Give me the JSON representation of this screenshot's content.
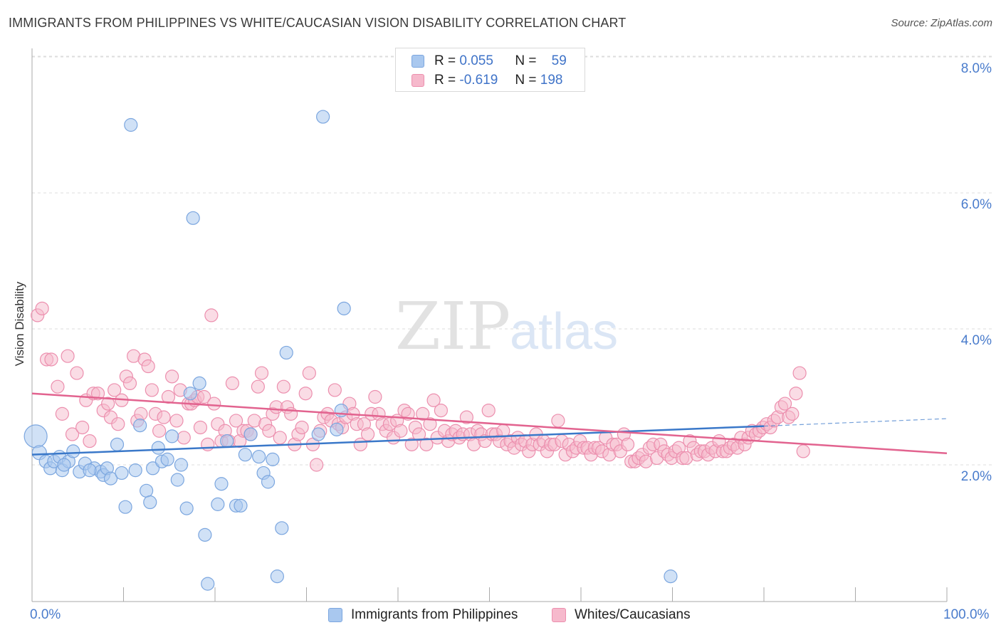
{
  "title": "IMMIGRANTS FROM PHILIPPINES VS WHITE/CAUCASIAN VISION DISABILITY CORRELATION CHART",
  "source": "Source: ZipAtlas.com",
  "watermark": {
    "zip": "ZIP",
    "atlas": "atlas"
  },
  "legend_top": {
    "rows": [
      {
        "r_label": "R =",
        "r_value": "0.055",
        "n_label": "N =",
        "n_value": "59"
      },
      {
        "r_label": "R =",
        "r_value": "-0.619",
        "n_label": "N =",
        "n_value": "198"
      }
    ]
  },
  "legend_bottom": {
    "items": [
      {
        "label": "Immigrants from Philippines"
      },
      {
        "label": "Whites/Caucasians"
      }
    ]
  },
  "colors": {
    "blue_fill": "#a9c8ef",
    "blue_stroke": "#7ba6df",
    "blue_line": "#3a78c9",
    "pink_fill": "#f6b9cc",
    "pink_stroke": "#ec8fae",
    "pink_line": "#e2638f",
    "tick_text": "#4a7ccc",
    "grid": "#dcdcdc"
  },
  "chart_data": {
    "type": "scatter",
    "ylabel": "Vision Disability",
    "x_tick_labels": [
      "0.0%",
      "100.0%"
    ],
    "y_tick_labels": [
      "2.0%",
      "4.0%",
      "6.0%",
      "8.0%"
    ],
    "y_ticks": [
      2.0,
      4.0,
      6.0,
      8.0
    ],
    "xlim": [
      0,
      100
    ],
    "ylim": [
      0.0,
      8.2
    ],
    "grid": true,
    "series": [
      {
        "name": "Immigrants from Philippines",
        "color": "blue",
        "trend": {
          "x0": 0,
          "y0": 2.15,
          "x1": 80,
          "y1": 2.57,
          "dashed_to_x": 100,
          "dashed_to_y": 2.68
        },
        "points": [
          [
            0.4,
            2.42,
            16
          ],
          [
            0.8,
            2.18,
            10
          ],
          [
            1.5,
            2.05,
            9
          ],
          [
            2,
            1.95,
            9
          ],
          [
            2.4,
            2.05,
            9
          ],
          [
            3,
            2.12,
            9
          ],
          [
            3.3,
            1.92,
            9
          ],
          [
            4,
            2.05,
            9
          ],
          [
            4.5,
            2.2,
            9
          ],
          [
            5.2,
            1.9,
            9
          ],
          [
            5.8,
            2.02,
            9
          ],
          [
            6.8,
            1.95,
            9
          ],
          [
            7.5,
            1.9,
            9
          ],
          [
            7.8,
            1.85,
            9
          ],
          [
            8.2,
            1.95,
            9
          ],
          [
            8.6,
            1.8,
            9
          ],
          [
            9.3,
            2.3,
            9
          ],
          [
            9.8,
            1.88,
            9
          ],
          [
            10.2,
            1.38,
            9
          ],
          [
            10.8,
            7.0,
            9
          ],
          [
            11.3,
            1.92,
            9
          ],
          [
            11.8,
            2.58,
            9
          ],
          [
            12.5,
            1.62,
            9
          ],
          [
            12.9,
            1.45,
            9
          ],
          [
            13.2,
            1.95,
            9
          ],
          [
            13.8,
            2.25,
            9
          ],
          [
            14.2,
            2.05,
            9
          ],
          [
            14.8,
            2.08,
            9
          ],
          [
            15.3,
            2.42,
            9
          ],
          [
            15.9,
            1.78,
            9
          ],
          [
            16.3,
            2.0,
            9
          ],
          [
            16.9,
            1.36,
            9
          ],
          [
            17.3,
            3.05,
            9
          ],
          [
            17.6,
            5.63,
            9
          ],
          [
            18.3,
            3.2,
            9
          ],
          [
            18.9,
            0.97,
            9
          ],
          [
            19.2,
            0.25,
            9
          ],
          [
            20.3,
            1.42,
            9
          ],
          [
            20.7,
            1.72,
            9
          ],
          [
            21.3,
            2.35,
            9
          ],
          [
            22.3,
            1.4,
            9
          ],
          [
            22.8,
            1.4,
            9
          ],
          [
            23.3,
            2.15,
            9
          ],
          [
            23.9,
            2.45,
            9
          ],
          [
            24.8,
            2.12,
            9
          ],
          [
            25.3,
            1.88,
            9
          ],
          [
            25.8,
            1.75,
            9
          ],
          [
            26.3,
            2.08,
            9
          ],
          [
            26.8,
            0.36,
            9
          ],
          [
            27.3,
            1.07,
            9
          ],
          [
            27.8,
            3.65,
            9
          ],
          [
            31.3,
            2.45,
            9
          ],
          [
            31.8,
            7.12,
            9
          ],
          [
            33.3,
            2.52,
            9
          ],
          [
            33.8,
            2.8,
            9
          ],
          [
            34.1,
            4.3,
            9
          ],
          [
            69.8,
            0.36,
            9
          ],
          [
            3.5,
            2.0,
            9
          ],
          [
            6.3,
            1.92,
            9
          ]
        ]
      },
      {
        "name": "Whites/Caucasians",
        "color": "pink",
        "trend": {
          "x0": 0,
          "y0": 3.05,
          "x1": 100,
          "y1": 2.17
        },
        "points": [
          [
            0.6,
            4.2
          ],
          [
            1.1,
            4.3
          ],
          [
            1.6,
            3.55
          ],
          [
            2.1,
            3.55
          ],
          [
            2.8,
            3.15
          ],
          [
            3.3,
            2.75
          ],
          [
            3.9,
            3.6
          ],
          [
            4.4,
            2.45
          ],
          [
            4.9,
            3.35
          ],
          [
            5.5,
            2.55
          ],
          [
            5.9,
            2.95
          ],
          [
            6.3,
            2.35
          ],
          [
            6.7,
            3.05
          ],
          [
            7.2,
            3.05
          ],
          [
            7.8,
            2.8
          ],
          [
            8.3,
            2.9
          ],
          [
            8.6,
            2.7
          ],
          [
            9.0,
            3.1
          ],
          [
            9.4,
            2.6
          ],
          [
            9.8,
            2.95
          ],
          [
            10.3,
            3.3
          ],
          [
            10.7,
            3.2
          ],
          [
            11.1,
            3.6
          ],
          [
            11.5,
            2.65
          ],
          [
            11.9,
            2.75
          ],
          [
            12.3,
            3.55
          ],
          [
            12.7,
            3.45
          ],
          [
            13.1,
            3.1
          ],
          [
            13.5,
            2.75
          ],
          [
            13.9,
            2.5
          ],
          [
            14.4,
            2.7
          ],
          [
            14.9,
            3.0
          ],
          [
            15.3,
            3.3
          ],
          [
            15.8,
            2.65
          ],
          [
            16.2,
            3.1
          ],
          [
            16.6,
            2.4
          ],
          [
            17.1,
            2.9
          ],
          [
            17.4,
            2.9
          ],
          [
            17.8,
            2.95
          ],
          [
            18.1,
            3.0
          ],
          [
            18.4,
            2.55
          ],
          [
            18.8,
            3.0
          ],
          [
            19.2,
            2.3
          ],
          [
            19.6,
            4.2
          ],
          [
            19.9,
            2.9
          ],
          [
            20.3,
            2.6
          ],
          [
            20.7,
            2.35
          ],
          [
            21.1,
            2.5
          ],
          [
            21.5,
            2.35
          ],
          [
            21.9,
            3.2
          ],
          [
            22.3,
            2.65
          ],
          [
            22.7,
            2.35
          ],
          [
            23.1,
            2.5
          ],
          [
            23.5,
            2.5
          ],
          [
            23.9,
            2.45
          ],
          [
            24.3,
            2.65
          ],
          [
            24.7,
            3.15
          ],
          [
            25.1,
            3.35
          ],
          [
            25.5,
            2.6
          ],
          [
            25.9,
            2.5
          ],
          [
            26.3,
            2.75
          ],
          [
            26.7,
            2.85
          ],
          [
            27.1,
            2.4
          ],
          [
            27.5,
            3.15
          ],
          [
            27.9,
            2.85
          ],
          [
            28.3,
            2.75
          ],
          [
            28.7,
            2.3
          ],
          [
            29.1,
            2.45
          ],
          [
            29.5,
            2.55
          ],
          [
            29.9,
            3.05
          ],
          [
            30.3,
            3.35
          ],
          [
            30.7,
            2.3
          ],
          [
            31.1,
            2.0
          ],
          [
            31.5,
            2.5
          ],
          [
            31.9,
            2.7
          ],
          [
            32.3,
            2.75
          ],
          [
            32.7,
            2.65
          ],
          [
            33.1,
            3.1
          ],
          [
            33.5,
            2.6
          ],
          [
            33.9,
            2.55
          ],
          [
            34.3,
            2.7
          ],
          [
            34.7,
            2.9
          ],
          [
            35.1,
            2.75
          ],
          [
            35.5,
            2.6
          ],
          [
            35.9,
            2.3
          ],
          [
            36.3,
            2.6
          ],
          [
            36.7,
            2.45
          ],
          [
            37.1,
            2.75
          ],
          [
            37.5,
            3.0
          ],
          [
            37.9,
            2.75
          ],
          [
            38.3,
            2.6
          ],
          [
            38.7,
            2.5
          ],
          [
            39.1,
            2.6
          ],
          [
            39.5,
            2.4
          ],
          [
            39.9,
            2.65
          ],
          [
            40.3,
            2.5
          ],
          [
            40.7,
            2.8
          ],
          [
            41.1,
            2.75
          ],
          [
            41.5,
            2.3
          ],
          [
            41.9,
            2.55
          ],
          [
            42.3,
            2.45
          ],
          [
            42.7,
            2.75
          ],
          [
            43.1,
            2.3
          ],
          [
            43.5,
            2.6
          ],
          [
            43.9,
            2.95
          ],
          [
            44.3,
            2.4
          ],
          [
            44.7,
            2.8
          ],
          [
            45.1,
            2.5
          ],
          [
            45.5,
            2.35
          ],
          [
            45.9,
            2.45
          ],
          [
            46.3,
            2.5
          ],
          [
            46.7,
            2.4
          ],
          [
            47.1,
            2.45
          ],
          [
            47.5,
            2.7
          ],
          [
            47.9,
            2.45
          ],
          [
            48.3,
            2.3
          ],
          [
            48.7,
            2.5
          ],
          [
            49.1,
            2.45
          ],
          [
            49.5,
            2.35
          ],
          [
            49.9,
            2.8
          ],
          [
            50.3,
            2.45
          ],
          [
            50.7,
            2.45
          ],
          [
            51.1,
            2.35
          ],
          [
            51.5,
            2.5
          ],
          [
            51.9,
            2.3
          ],
          [
            52.3,
            2.35
          ],
          [
            52.7,
            2.25
          ],
          [
            53.1,
            2.4
          ],
          [
            53.5,
            2.3
          ],
          [
            53.9,
            2.35
          ],
          [
            54.3,
            2.2
          ],
          [
            54.7,
            2.3
          ],
          [
            55.1,
            2.45
          ],
          [
            55.5,
            2.3
          ],
          [
            55.9,
            2.35
          ],
          [
            56.3,
            2.2
          ],
          [
            56.7,
            2.3
          ],
          [
            57.1,
            2.3
          ],
          [
            57.5,
            2.65
          ],
          [
            57.9,
            2.35
          ],
          [
            58.3,
            2.15
          ],
          [
            58.7,
            2.3
          ],
          [
            59.1,
            2.2
          ],
          [
            59.5,
            2.25
          ],
          [
            59.9,
            2.35
          ],
          [
            60.3,
            2.25
          ],
          [
            60.7,
            2.25
          ],
          [
            61.1,
            2.15
          ],
          [
            61.5,
            2.25
          ],
          [
            61.9,
            2.25
          ],
          [
            62.3,
            2.2
          ],
          [
            62.7,
            2.4
          ],
          [
            63.1,
            2.15
          ],
          [
            63.5,
            2.3
          ],
          [
            63.9,
            2.3
          ],
          [
            64.3,
            2.2
          ],
          [
            64.7,
            2.45
          ],
          [
            65.1,
            2.3
          ],
          [
            65.5,
            2.05
          ],
          [
            65.9,
            2.05
          ],
          [
            66.3,
            2.1
          ],
          [
            66.7,
            2.15
          ],
          [
            67.1,
            2.05
          ],
          [
            67.5,
            2.25
          ],
          [
            67.9,
            2.3
          ],
          [
            68.3,
            2.1
          ],
          [
            68.7,
            2.3
          ],
          [
            69.1,
            2.2
          ],
          [
            69.5,
            2.15
          ],
          [
            69.9,
            2.1
          ],
          [
            70.3,
            2.2
          ],
          [
            70.7,
            2.25
          ],
          [
            71.1,
            2.1
          ],
          [
            71.5,
            2.1
          ],
          [
            71.9,
            2.35
          ],
          [
            72.3,
            2.25
          ],
          [
            72.7,
            2.15
          ],
          [
            73.1,
            2.2
          ],
          [
            73.5,
            2.2
          ],
          [
            73.9,
            2.15
          ],
          [
            74.3,
            2.25
          ],
          [
            74.7,
            2.2
          ],
          [
            75.1,
            2.35
          ],
          [
            75.5,
            2.2
          ],
          [
            75.9,
            2.2
          ],
          [
            76.3,
            2.25
          ],
          [
            76.7,
            2.3
          ],
          [
            77.1,
            2.25
          ],
          [
            77.5,
            2.4
          ],
          [
            77.9,
            2.3
          ],
          [
            78.3,
            2.4
          ],
          [
            78.7,
            2.5
          ],
          [
            79.1,
            2.45
          ],
          [
            79.5,
            2.5
          ],
          [
            79.9,
            2.55
          ],
          [
            80.3,
            2.6
          ],
          [
            80.7,
            2.55
          ],
          [
            81.1,
            2.65
          ],
          [
            81.5,
            2.7
          ],
          [
            81.9,
            2.85
          ],
          [
            82.3,
            2.9
          ],
          [
            82.7,
            2.7
          ],
          [
            83.1,
            2.75
          ],
          [
            83.5,
            3.05
          ],
          [
            83.9,
            3.35
          ],
          [
            84.3,
            2.2
          ]
        ]
      }
    ]
  }
}
